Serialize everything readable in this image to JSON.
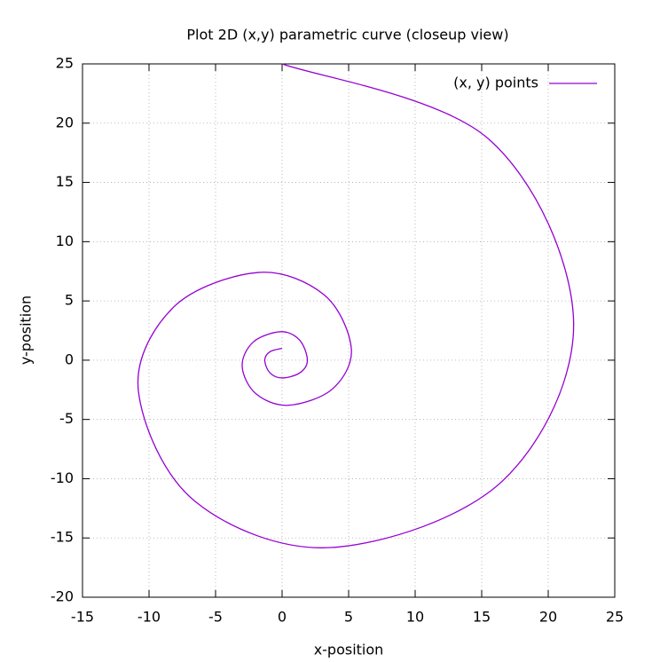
{
  "chart_data": {
    "type": "line",
    "title": "Plot 2D (x,y) parametric curve (closeup view)",
    "x_label": "x-position",
    "y_label": "y-position",
    "x": [
      0,
      -0.92,
      -1.3,
      -0.92,
      0,
      1.34,
      1.9,
      1.31,
      -0.1,
      -2.15,
      -3,
      -1.97,
      0.5,
      3.82,
      5.2,
      3.15,
      -1.8,
      -8.16,
      -10.8,
      -6.52,
      3.8,
      16.6,
      21.9,
      15.48,
      0
    ],
    "series": [
      {
        "name": "(x, y) points",
        "color": "#9400d3",
        "values": [
          1,
          0.71,
          0,
          -1.06,
          -1.5,
          -1.06,
          0,
          1.7,
          2.4,
          1.55,
          -0.5,
          -2.83,
          -3.8,
          -2.39,
          1,
          5.52,
          7.4,
          4.47,
          -2.6,
          -11.93,
          -15.8,
          -10.15,
          3.5,
          18.7,
          25
        ]
      }
    ],
    "xlim": [
      -15,
      25
    ],
    "ylim": [
      -20,
      25
    ],
    "xticks": [
      -15,
      -10,
      -5,
      0,
      5,
      10,
      15,
      20,
      25
    ],
    "yticks": [
      -20,
      -15,
      -10,
      -5,
      0,
      5,
      10,
      15,
      20,
      25
    ],
    "grid": true,
    "legend": "top-right"
  }
}
